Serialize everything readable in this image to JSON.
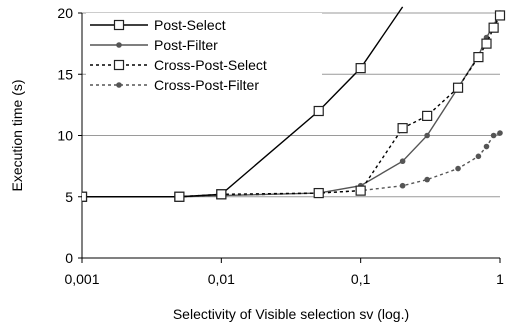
{
  "chart_data": {
    "type": "line",
    "xscale": "log",
    "xlim": [
      0.001,
      1
    ],
    "ylim": [
      0,
      20
    ],
    "xlabel": "Selectivity of Visible selection sv (log.)",
    "ylabel": "Execution time (s)",
    "x_ticks": [
      "0,001",
      "0,01",
      "0,1",
      "1"
    ],
    "y_ticks": [
      "0",
      "5",
      "10",
      "15",
      "20"
    ],
    "legend_position": "top-left",
    "series": [
      {
        "name": "Post-Select",
        "line_style": "solid",
        "marker": "open-square",
        "color": "#000000",
        "points": [
          [
            0.001,
            5.0
          ],
          [
            0.005,
            5.0
          ],
          [
            0.01,
            5.2
          ],
          [
            0.05,
            12.0
          ],
          [
            0.1,
            15.5
          ],
          [
            0.2,
            20.5
          ]
        ]
      },
      {
        "name": "Post-Filter",
        "line_style": "solid",
        "marker": "filled-dot",
        "color": "#555555",
        "points": [
          [
            0.001,
            5.0
          ],
          [
            0.005,
            5.0
          ],
          [
            0.01,
            5.1
          ],
          [
            0.05,
            5.3
          ],
          [
            0.1,
            5.9
          ],
          [
            0.2,
            7.9
          ],
          [
            0.3,
            10.0
          ],
          [
            0.5,
            13.9
          ],
          [
            0.7,
            16.5
          ],
          [
            0.8,
            18.0
          ],
          [
            0.9,
            19.0
          ],
          [
            1.0,
            20.0
          ]
        ]
      },
      {
        "name": "Cross-Post-Select",
        "line_style": "dashed",
        "marker": "open-square",
        "color": "#000000",
        "points": [
          [
            0.001,
            5.0
          ],
          [
            0.005,
            5.0
          ],
          [
            0.01,
            5.2
          ],
          [
            0.05,
            5.3
          ],
          [
            0.1,
            5.5
          ],
          [
            0.2,
            10.6
          ],
          [
            0.3,
            11.6
          ],
          [
            0.5,
            13.9
          ],
          [
            0.7,
            16.4
          ],
          [
            0.8,
            17.5
          ],
          [
            0.9,
            18.8
          ],
          [
            1.0,
            19.8
          ]
        ]
      },
      {
        "name": "Cross-Post-Filter",
        "line_style": "dashed",
        "marker": "filled-dot",
        "color": "#555555",
        "points": [
          [
            0.001,
            5.0
          ],
          [
            0.005,
            5.0
          ],
          [
            0.01,
            5.1
          ],
          [
            0.05,
            5.3
          ],
          [
            0.1,
            5.5
          ],
          [
            0.2,
            5.9
          ],
          [
            0.3,
            6.4
          ],
          [
            0.5,
            7.3
          ],
          [
            0.7,
            8.3
          ],
          [
            0.8,
            9.1
          ],
          [
            0.9,
            10.0
          ],
          [
            1.0,
            10.2
          ]
        ]
      }
    ]
  }
}
